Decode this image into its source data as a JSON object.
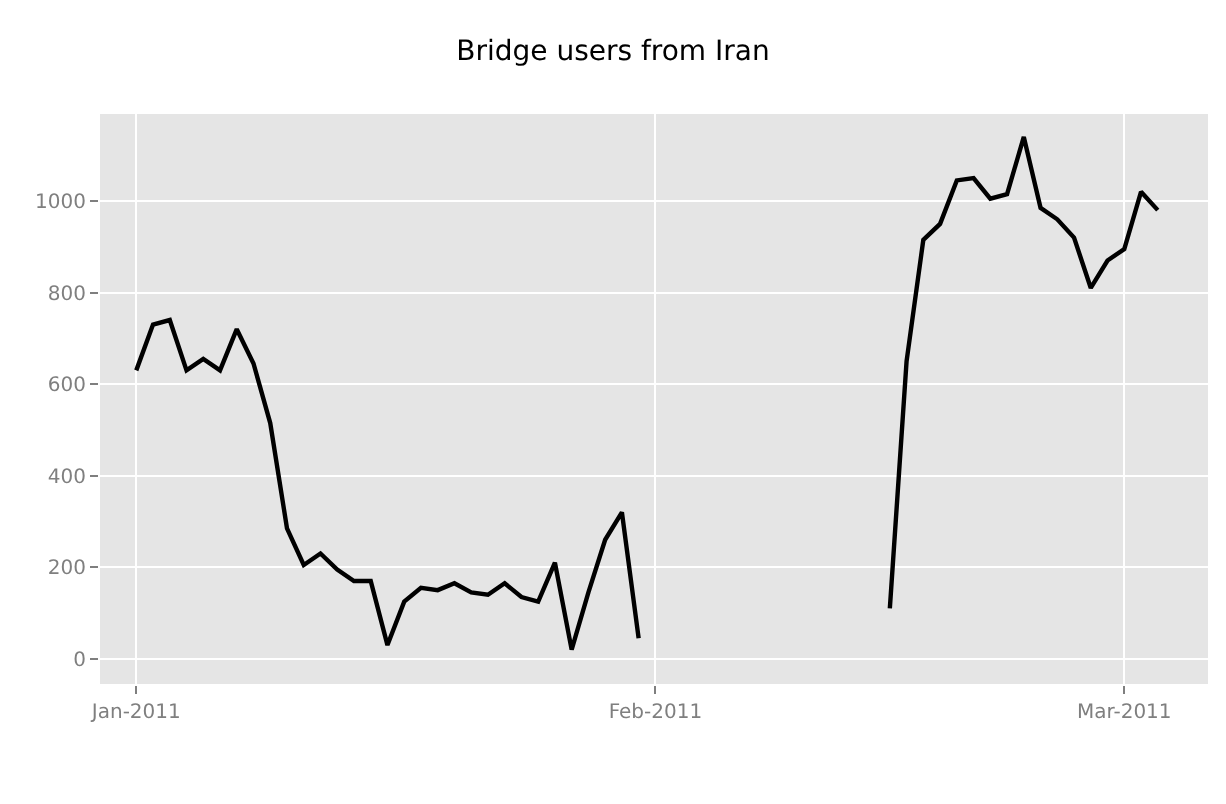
{
  "chart_data": {
    "type": "line",
    "title": "Bridge users from Iran",
    "x": [
      "2011-01-01",
      "2011-01-02",
      "2011-01-03",
      "2011-01-04",
      "2011-01-05",
      "2011-01-06",
      "2011-01-07",
      "2011-01-08",
      "2011-01-09",
      "2011-01-10",
      "2011-01-11",
      "2011-01-12",
      "2011-01-13",
      "2011-01-14",
      "2011-01-15",
      "2011-01-16",
      "2011-01-17",
      "2011-01-18",
      "2011-01-19",
      "2011-01-20",
      "2011-01-21",
      "2011-01-22",
      "2011-01-23",
      "2011-01-24",
      "2011-01-25",
      "2011-01-26",
      "2011-01-27",
      "2011-01-28",
      "2011-01-29",
      "2011-01-30",
      "2011-01-31",
      "2011-02-01",
      "2011-02-02",
      "2011-02-03",
      "2011-02-04",
      "2011-02-05",
      "2011-02-06",
      "2011-02-07",
      "2011-02-08",
      "2011-02-09",
      "2011-02-10",
      "2011-02-11",
      "2011-02-12",
      "2011-02-13",
      "2011-02-14",
      "2011-02-15",
      "2011-02-16",
      "2011-02-17",
      "2011-02-18",
      "2011-02-19",
      "2011-02-20",
      "2011-02-21",
      "2011-02-22",
      "2011-02-23",
      "2011-02-24",
      "2011-02-25",
      "2011-02-26",
      "2011-02-27",
      "2011-02-28",
      "2011-03-01",
      "2011-03-02",
      "2011-03-03"
    ],
    "series": [
      {
        "color": "#000000",
        "values": [
          630,
          730,
          740,
          630,
          655,
          630,
          720,
          645,
          515,
          285,
          205,
          230,
          195,
          170,
          170,
          30,
          125,
          155,
          150,
          165,
          145,
          140,
          165,
          135,
          125,
          210,
          20,
          145,
          260,
          320,
          45,
          null,
          null,
          null,
          null,
          null,
          null,
          null,
          null,
          null,
          null,
          null,
          null,
          null,
          null,
          110,
          650,
          915,
          950,
          1045,
          1050,
          1005,
          1015,
          1140,
          985,
          960,
          920,
          810,
          870,
          895,
          1020,
          980
        ]
      }
    ],
    "xlim": [
      "2010-12-29T20:00",
      "2011-03-06"
    ],
    "xticks": [
      {
        "value": "2011-01-01",
        "label": "Jan-2011"
      },
      {
        "value": "2011-02-01",
        "label": "Feb-2011"
      },
      {
        "value": "2011-03-01",
        "label": "Mar-2011"
      }
    ],
    "ylim": [
      -55,
      1190
    ],
    "yticks": [
      0,
      200,
      400,
      600,
      800,
      1000
    ],
    "grid": true,
    "marker": "none",
    "line_style": "solid"
  }
}
